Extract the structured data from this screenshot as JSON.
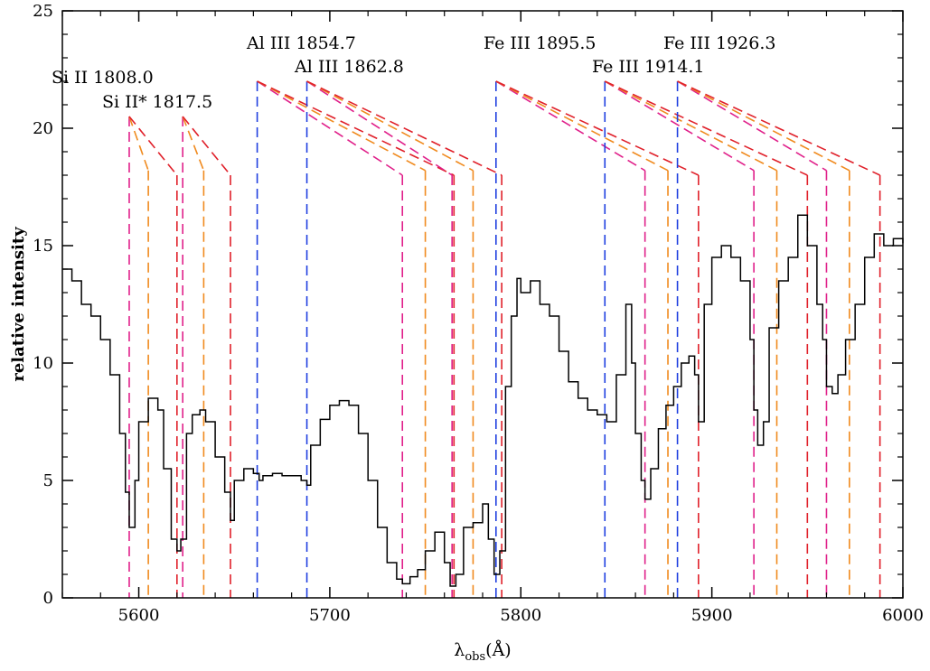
{
  "chart_data": {
    "type": "line",
    "title": "",
    "xlabel": "λobs(Å)",
    "xlabel_main": "λ",
    "xlabel_sub": "obs",
    "xlabel_tail": "(Å)",
    "ylabel": "relative intensity",
    "xlim": [
      5560,
      6000
    ],
    "ylim": [
      0,
      25
    ],
    "xticks": [
      5600,
      5700,
      5800,
      5900,
      6000
    ],
    "yticks": [
      0,
      5,
      10,
      15,
      20,
      25
    ],
    "grid": false,
    "spectrum": {
      "x": [
        5560,
        5565,
        5570,
        5575,
        5580,
        5585,
        5590,
        5593,
        5595,
        5598,
        5600,
        5605,
        5610,
        5613,
        5617,
        5620,
        5622,
        5625,
        5628,
        5632,
        5635,
        5640,
        5645,
        5648,
        5650,
        5655,
        5660,
        5663,
        5665,
        5670,
        5675,
        5680,
        5685,
        5688,
        5690,
        5695,
        5700,
        5705,
        5710,
        5715,
        5720,
        5725,
        5730,
        5735,
        5738,
        5742,
        5746,
        5750,
        5755,
        5760,
        5763,
        5766,
        5770,
        5775,
        5780,
        5783,
        5786,
        5789,
        5792,
        5795,
        5798,
        5800,
        5805,
        5810,
        5815,
        5820,
        5825,
        5830,
        5835,
        5840,
        5845,
        5850,
        5855,
        5858,
        5860,
        5863,
        5865,
        5868,
        5872,
        5876,
        5880,
        5884,
        5888,
        5891,
        5893,
        5896,
        5900,
        5905,
        5910,
        5915,
        5920,
        5922,
        5924,
        5927,
        5930,
        5935,
        5940,
        5945,
        5950,
        5955,
        5958,
        5960,
        5963,
        5966,
        5970,
        5975,
        5980,
        5985,
        5990,
        5995,
        6000
      ],
      "y": [
        14.0,
        13.5,
        12.5,
        12.0,
        11.0,
        9.5,
        7.0,
        4.5,
        3.0,
        5.0,
        7.5,
        8.5,
        8.0,
        5.5,
        2.5,
        2.0,
        2.5,
        7.0,
        7.8,
        8.0,
        7.5,
        6.0,
        4.5,
        3.3,
        5.0,
        5.5,
        5.3,
        5.0,
        5.2,
        5.3,
        5.2,
        5.2,
        5.0,
        4.8,
        6.5,
        7.6,
        8.2,
        8.4,
        8.2,
        7.0,
        5.0,
        3.0,
        1.5,
        0.8,
        0.6,
        0.9,
        1.2,
        2.0,
        2.8,
        1.5,
        0.5,
        1.0,
        3.0,
        3.2,
        4.0,
        2.5,
        1.0,
        2.0,
        9.0,
        12.0,
        13.6,
        13.0,
        13.5,
        12.5,
        12.0,
        10.5,
        9.2,
        8.5,
        8.0,
        7.8,
        7.5,
        9.5,
        12.5,
        10.0,
        7.0,
        5.0,
        4.2,
        5.5,
        7.2,
        8.2,
        9.0,
        10.0,
        10.3,
        9.5,
        7.5,
        12.5,
        14.5,
        15.0,
        14.5,
        13.5,
        11.0,
        8.0,
        6.5,
        7.5,
        11.5,
        13.5,
        14.5,
        16.3,
        15.0,
        12.5,
        11.0,
        9.0,
        8.7,
        9.5,
        11.0,
        12.5,
        14.5,
        15.5,
        15.0,
        15.3,
        15.1
      ]
    },
    "line_systems": [
      {
        "label": "Si II 1808.0",
        "drops": [
          {
            "x": 5595,
            "color": "#e0208a",
            "apex": [
              5595,
              20.5
            ],
            "foot": [
              5595,
              0
            ]
          },
          {
            "x": 5605,
            "color": "#f08a1e",
            "apex": [
              5600,
              18.2
            ],
            "foot": [
              5605,
              0
            ]
          },
          {
            "x": 5620,
            "color": "#e0202a",
            "apex": [
              5618,
              18.0
            ],
            "foot": [
              5620,
              0
            ]
          }
        ]
      },
      {
        "label": "Si II* 1817.5",
        "drops": [
          {
            "x": 5623,
            "color": "#e0208a",
            "apex": [
              5623,
              20.5
            ],
            "foot": [
              5623,
              0
            ]
          },
          {
            "x": 5634,
            "color": "#f08a1e",
            "apex": [
              5633,
              18.2
            ],
            "foot": [
              5634,
              0
            ]
          },
          {
            "x": 5648,
            "color": "#e0202a",
            "apex": [
              5648,
              18.0
            ],
            "foot": [
              5648,
              0
            ]
          }
        ]
      },
      {
        "label": "Al III 1854.7",
        "drops": [
          {
            "x": 5662,
            "color": "#1f3fe0",
            "apex": [
              5662,
              22.0
            ],
            "foot": [
              5662,
              0
            ]
          },
          {
            "x": 5738,
            "color": "#e0208a",
            "apex": [
              5738,
              18.0
            ],
            "foot": [
              5738,
              0
            ]
          },
          {
            "x": 5750,
            "color": "#f08a1e",
            "apex": [
              5750,
              18.2
            ],
            "foot": [
              5750,
              0
            ]
          },
          {
            "x": 5765,
            "color": "#e0202a",
            "apex": [
              5765,
              18.0
            ],
            "foot": [
              5765,
              0
            ]
          }
        ]
      },
      {
        "label": "Al III 1862.8",
        "drops": [
          {
            "x": 5688,
            "color": "#1f3fe0",
            "apex": [
              5688,
              22.0
            ],
            "foot": [
              5688,
              0
            ]
          },
          {
            "x": 5764,
            "color": "#e0208a",
            "apex": [
              5764,
              18.0
            ],
            "foot": [
              5764,
              0
            ]
          },
          {
            "x": 5775,
            "color": "#f08a1e",
            "apex": [
              5775,
              18.2
            ],
            "foot": [
              5775,
              0
            ]
          },
          {
            "x": 5790,
            "color": "#e0202a",
            "apex": [
              5790,
              18.0
            ],
            "foot": [
              5790,
              0
            ]
          }
        ]
      },
      {
        "label": "Fe III 1895.5",
        "drops": [
          {
            "x": 5787,
            "color": "#1f3fe0",
            "apex": [
              5787,
              22.0
            ],
            "foot": [
              5787,
              0
            ]
          },
          {
            "x": 5865,
            "color": "#e0208a",
            "apex": [
              5865,
              18.2
            ],
            "foot": [
              5865,
              0
            ]
          },
          {
            "x": 5877,
            "color": "#f08a1e",
            "apex": [
              5877,
              18.2
            ],
            "foot": [
              5877,
              0
            ]
          },
          {
            "x": 5893,
            "color": "#e0202a",
            "apex": [
              5893,
              18.0
            ],
            "foot": [
              5893,
              0
            ]
          }
        ]
      },
      {
        "label": "Fe III 1914.1",
        "drops": [
          {
            "x": 5844,
            "color": "#1f3fe0",
            "apex": [
              5844,
              22.0
            ],
            "foot": [
              5844,
              0
            ]
          },
          {
            "x": 5922,
            "color": "#e0208a",
            "apex": [
              5922,
              18.2
            ],
            "foot": [
              5922,
              0
            ]
          },
          {
            "x": 5934,
            "color": "#f08a1e",
            "apex": [
              5934,
              18.2
            ],
            "foot": [
              5934,
              0
            ]
          },
          {
            "x": 5950,
            "color": "#e0202a",
            "apex": [
              5950,
              18.0
            ],
            "foot": [
              5950,
              0
            ]
          }
        ]
      },
      {
        "label": "Fe III 1926.3",
        "drops": [
          {
            "x": 5882,
            "color": "#1f3fe0",
            "apex": [
              5882,
              22.0
            ],
            "foot": [
              5882,
              0
            ]
          },
          {
            "x": 5960,
            "color": "#e0208a",
            "apex": [
              5960,
              18.2
            ],
            "foot": [
              5960,
              0
            ]
          },
          {
            "x": 5972,
            "color": "#f08a1e",
            "apex": [
              5972,
              18.2
            ],
            "foot": [
              5972,
              0
            ]
          },
          {
            "x": 5988,
            "color": "#e0202a",
            "apex": [
              5988,
              18.0
            ],
            "foot": [
              5988,
              0
            ]
          }
        ]
      }
    ],
    "colors": {
      "spectrum": "#000000",
      "blue": "#1f3fe0",
      "magenta": "#e0208a",
      "orange": "#f08a1e",
      "red": "#e0202a"
    }
  }
}
